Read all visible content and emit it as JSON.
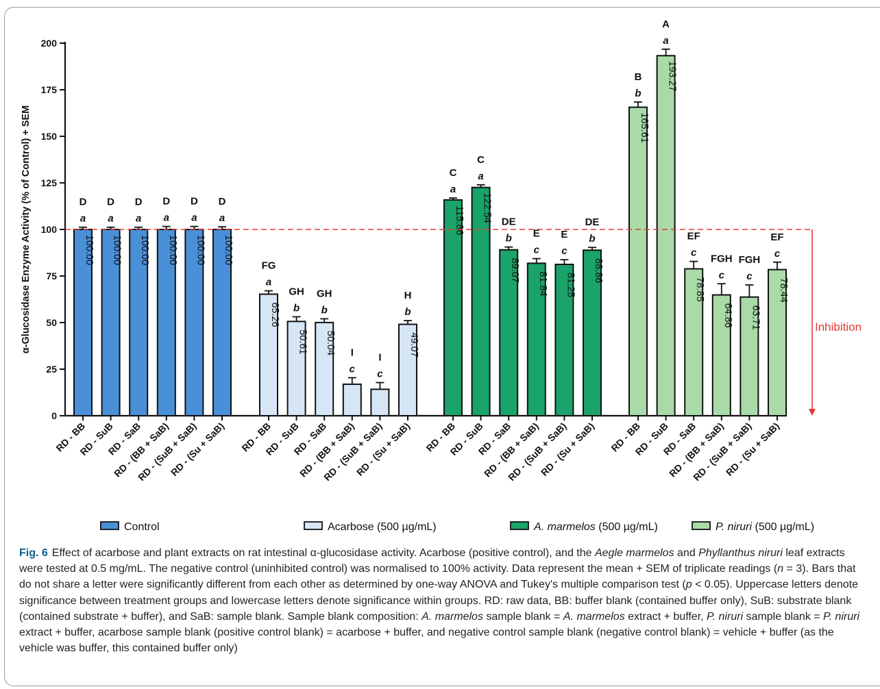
{
  "chart_data": {
    "type": "bar",
    "ylabel": "α-Glucosidase Enzyme Activity (% of Control) + SEM",
    "ylim": [
      0,
      200
    ],
    "yticks": [
      0,
      25,
      50,
      75,
      100,
      125,
      150,
      175,
      200
    ],
    "reference_line": 100,
    "reference_label": "Inhibition",
    "categories": [
      "RD - BB",
      "RD - SuB",
      "RD - SaB",
      "RD - (BB + SaB)",
      "RD - (SuB + SaB)",
      "RD - (Su + SaB)"
    ],
    "series": [
      {
        "name": "Control",
        "color": "#4a90d9",
        "values": [
          100.0,
          100.0,
          100.0,
          100.0,
          100.0,
          100.0
        ],
        "labels": [
          "100.00",
          "100.00",
          "100.00",
          "100.00",
          "100.00",
          "100.00"
        ],
        "sem": [
          1.2,
          1.2,
          1.2,
          1.6,
          1.6,
          1.4
        ],
        "upper": [
          "D",
          "D",
          "D",
          "D",
          "D",
          "D"
        ],
        "lower": [
          "a",
          "a",
          "a",
          "a",
          "a",
          "a"
        ]
      },
      {
        "name": "Acarbose (500 µg/mL)",
        "color": "#d6e6f7",
        "values": [
          65.26,
          50.61,
          50.04,
          16.9,
          14.2,
          49.07
        ],
        "labels": [
          "65.26",
          "50.61",
          "50.04",
          "",
          "",
          "49.07"
        ],
        "sem": [
          1.8,
          2.5,
          2.0,
          3.5,
          3.6,
          2.0
        ],
        "upper": [
          "FG",
          "GH",
          "GH",
          "I",
          "I",
          "H"
        ],
        "lower": [
          "a",
          "b",
          "b",
          "c",
          "c",
          "b"
        ]
      },
      {
        "name": "A. marmelos (500 µg/mL)",
        "color": "#1aa36a",
        "values": [
          115.86,
          122.54,
          89.07,
          81.84,
          81.25,
          88.86
        ],
        "labels": [
          "115.86",
          "122.54",
          "89.07",
          "81.84",
          "81.25",
          "88.86"
        ],
        "sem": [
          1.0,
          1.4,
          1.5,
          2.5,
          2.5,
          1.5
        ],
        "upper": [
          "C",
          "C",
          "DE",
          "E",
          "E",
          "DE"
        ],
        "lower": [
          "a",
          "a",
          "b",
          "c",
          "c",
          "b"
        ]
      },
      {
        "name": "P. niruri (500 µg/mL)",
        "color": "#a9dba8",
        "values": [
          165.61,
          193.27,
          78.85,
          64.86,
          63.71,
          78.44
        ],
        "labels": [
          "165.61",
          "193.27",
          "78.85",
          "64.86",
          "63.71",
          "78.44"
        ],
        "sem": [
          2.8,
          3.5,
          4.0,
          6.0,
          6.5,
          4.0
        ],
        "upper": [
          "B",
          "A",
          "EF",
          "FGH",
          "FGH",
          "EF"
        ],
        "lower": [
          "b",
          "a",
          "c",
          "c",
          "c",
          "c"
        ]
      }
    ],
    "legend": [
      "Control",
      "Acarbose (500 µg/mL)",
      "A. marmelos (500 µg/mL)",
      "P. niruri (500 µg/mL)"
    ],
    "legend_position": "bottom"
  },
  "caption": {
    "fig_label": "Fig. 6",
    "segments": [
      {
        "t": "Effect of acarbose and plant extracts on rat intestinal α-glucosidase activity. Acarbose (positive control), and the "
      },
      {
        "t": "Aegle marmelos",
        "i": true
      },
      {
        "t": " and "
      },
      {
        "t": "Phyllanthus niruri",
        "i": true
      },
      {
        "t": " leaf extracts were tested at 0.5 mg/mL. The negative control (uninhibited control) was normalised to 100% activity. Data represent the mean + SEM of triplicate readings ("
      },
      {
        "t": "n",
        "i": true
      },
      {
        "t": " = 3). Bars that do not share a letter were significantly different from each other as determined by one-way ANOVA and Tukey's multiple comparison test ("
      },
      {
        "t": "p",
        "i": true
      },
      {
        "t": " < 0.05). Uppercase letters denote significance between treatment groups and lowercase letters denote significance within groups. RD: raw data, BB: buffer blank (contained buffer only), SuB: substrate blank (contained substrate + buffer), and SaB: sample blank. Sample blank composition: "
      },
      {
        "t": "A. marmelos",
        "i": true
      },
      {
        "t": " sample blank = "
      },
      {
        "t": "A. marmelos",
        "i": true
      },
      {
        "t": " extract + buffer, "
      },
      {
        "t": "P. niruri",
        "i": true
      },
      {
        "t": " sample blank = "
      },
      {
        "t": "P. niruri",
        "i": true
      },
      {
        "t": " extract + buffer, acarbose sample blank (positive control blank) = acarbose + buffer, and negative control sample blank (negative control blank) = vehicle + buffer (as the vehicle was buffer, this contained buffer only)"
      }
    ]
  }
}
